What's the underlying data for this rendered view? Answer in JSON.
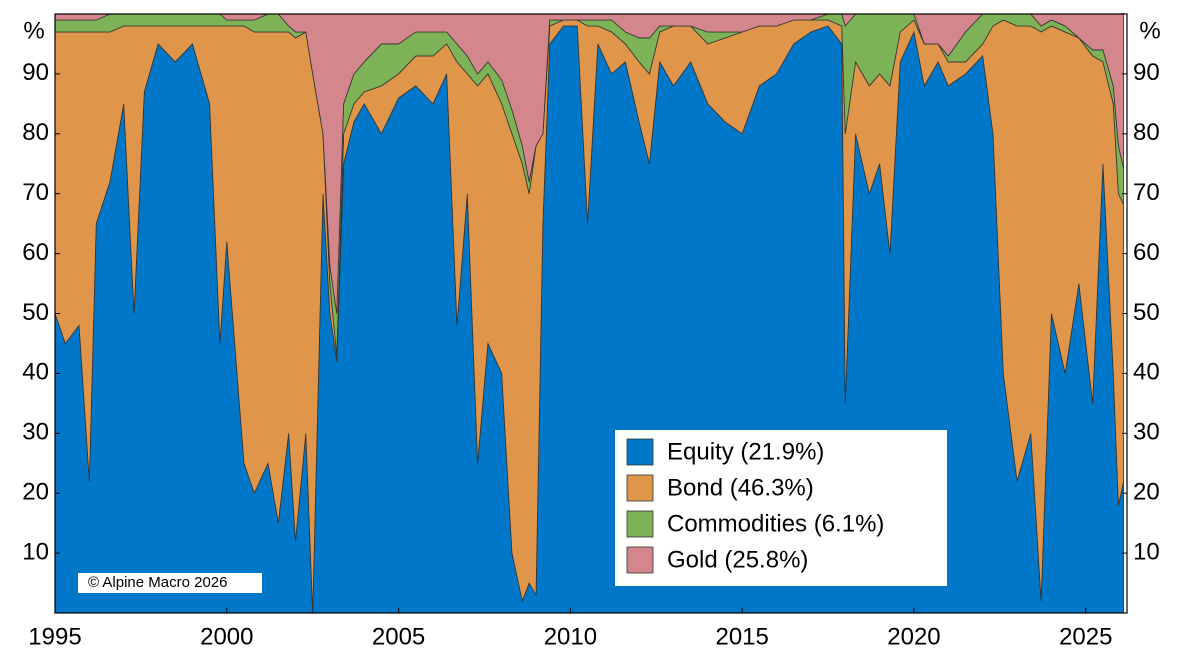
{
  "chart_data": {
    "type": "stacked_area",
    "y_label": "%",
    "annotation": "© Alpine Macro 2026",
    "xlim": [
      1995,
      2026.2
    ],
    "xticks": [
      1995,
      2000,
      2005,
      2010,
      2015,
      2020,
      2025
    ],
    "ylim": [
      0,
      100
    ],
    "yticks": [
      10,
      20,
      30,
      40,
      50,
      60,
      70,
      80,
      90
    ],
    "legend": "lower-right",
    "x": [
      1995.0,
      1995.3,
      1995.7,
      1996.0,
      1996.2,
      1996.6,
      1997.0,
      1997.3,
      1997.6,
      1998.0,
      1998.5,
      1999.0,
      1999.5,
      1999.8,
      2000.0,
      2000.5,
      2000.8,
      2001.2,
      2001.5,
      2001.8,
      2002.0,
      2002.3,
      2002.5,
      2002.8,
      2003.0,
      2003.2,
      2003.4,
      2003.7,
      2004.0,
      2004.5,
      2005.0,
      2005.5,
      2006.0,
      2006.4,
      2006.7,
      2007.0,
      2007.3,
      2007.6,
      2008.0,
      2008.3,
      2008.6,
      2008.8,
      2009.0,
      2009.2,
      2009.4,
      2009.8,
      2010.2,
      2010.5,
      2010.8,
      2011.2,
      2011.6,
      2012.0,
      2012.3,
      2012.6,
      2013.0,
      2013.5,
      2014.0,
      2014.5,
      2015.0,
      2015.5,
      2016.0,
      2016.5,
      2017.0,
      2017.5,
      2017.9,
      2018.0,
      2018.3,
      2018.7,
      2019.0,
      2019.3,
      2019.6,
      2020.0,
      2020.3,
      2020.7,
      2021.0,
      2021.5,
      2022.0,
      2022.3,
      2022.6,
      2023.0,
      2023.4,
      2023.7,
      2024.0,
      2024.4,
      2024.8,
      2025.2,
      2025.5,
      2025.8,
      2025.95,
      2026.1
    ],
    "series": [
      {
        "name": "Equity (21.9%)",
        "color": "#0077c8",
        "values": [
          50,
          45,
          48,
          22,
          65,
          72,
          85,
          50,
          87,
          95,
          92,
          95,
          85,
          45,
          62,
          25,
          20,
          25,
          15,
          30,
          12,
          30,
          0,
          70,
          50,
          42,
          75,
          82,
          85,
          80,
          86,
          88,
          85,
          90,
          48,
          70,
          25,
          45,
          40,
          10,
          2,
          5,
          3,
          65,
          95,
          98,
          98,
          65,
          95,
          90,
          92,
          82,
          75,
          92,
          88,
          92,
          85,
          82,
          80,
          88,
          90,
          95,
          97,
          98,
          95,
          35,
          80,
          70,
          75,
          60,
          92,
          97,
          88,
          92,
          88,
          90,
          93,
          80,
          40,
          22,
          30,
          2,
          50,
          40,
          55,
          35,
          75,
          40,
          18,
          21.9
        ]
      },
      {
        "name": "Bond (46.3%)",
        "color": "#e0964a",
        "values": [
          47,
          52,
          49,
          75,
          32,
          25,
          13,
          48,
          11,
          3,
          6,
          3,
          13,
          53,
          36,
          73,
          77,
          72,
          82,
          67,
          84,
          67,
          90,
          10,
          5,
          1,
          5,
          3,
          2,
          8,
          4,
          5,
          8,
          5,
          44,
          20,
          63,
          45,
          45,
          70,
          73,
          65,
          75,
          15,
          3,
          1,
          1,
          33,
          3,
          7,
          3,
          10,
          15,
          5,
          10,
          6,
          10,
          14,
          17,
          10,
          8,
          4,
          2,
          1,
          3,
          45,
          12,
          18,
          15,
          28,
          5,
          2,
          7,
          3,
          4,
          2,
          2,
          18,
          59,
          76,
          68,
          95,
          48,
          57,
          41,
          58,
          17,
          45,
          52,
          46.3
        ]
      },
      {
        "name": "Commodities (6.1%)",
        "color": "#7db356",
        "values": [
          2,
          2,
          2,
          2,
          2,
          3,
          2,
          2,
          2,
          2,
          2,
          2,
          2,
          2,
          1,
          1,
          2,
          3,
          3,
          1,
          1,
          0,
          0,
          0,
          3,
          7,
          5,
          5,
          5,
          7,
          5,
          4,
          4,
          2,
          3,
          3,
          2,
          2,
          4,
          4,
          3,
          2,
          0,
          0,
          1,
          0,
          0,
          1,
          1,
          2,
          2,
          4,
          6,
          1,
          0,
          0,
          2,
          1,
          0,
          0,
          0,
          0,
          0,
          1,
          2,
          18,
          8,
          12,
          10,
          12,
          3,
          1,
          0,
          0,
          1,
          5,
          5,
          2,
          1,
          2,
          2,
          1,
          1,
          1,
          0,
          1,
          2,
          3,
          8,
          6.1
        ]
      },
      {
        "name": "Gold (25.8%)",
        "color": "#d4868d",
        "values": [
          1,
          1,
          1,
          1,
          1,
          0,
          0,
          0,
          0,
          0,
          0,
          0,
          0,
          0,
          1,
          1,
          1,
          0,
          0,
          2,
          3,
          3,
          10,
          20,
          42,
          50,
          15,
          10,
          8,
          5,
          5,
          3,
          3,
          3,
          5,
          7,
          10,
          8,
          11,
          16,
          22,
          28,
          22,
          20,
          1,
          1,
          1,
          1,
          1,
          1,
          3,
          4,
          4,
          2,
          2,
          2,
          3,
          3,
          3,
          2,
          2,
          1,
          1,
          0,
          0,
          2,
          0,
          0,
          0,
          0,
          0,
          0,
          5,
          5,
          7,
          3,
          0,
          0,
          0,
          0,
          0,
          2,
          1,
          2,
          4,
          6,
          6,
          12,
          22,
          25.8
        ]
      }
    ]
  }
}
